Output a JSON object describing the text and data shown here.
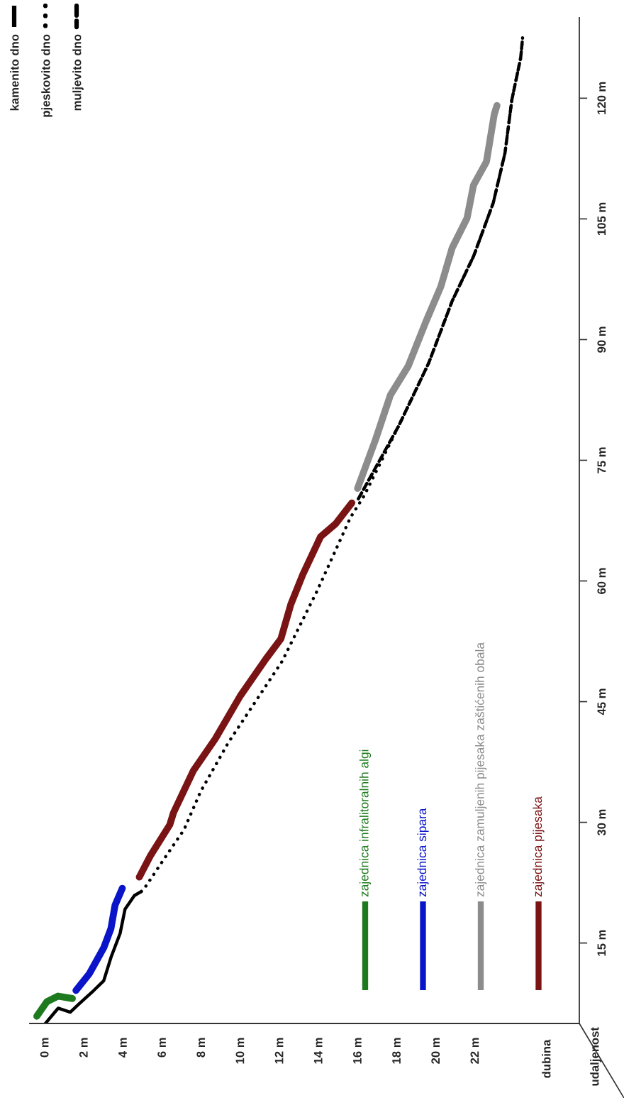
{
  "chart_data": {
    "type": "line",
    "annotations": [
      "dubina"
    ],
    "ylabel": "udaljenost",
    "legend": "top left",
    "xlim": [
      -0.8,
      27.3
    ],
    "ylim": [
      5,
      130
    ],
    "xticks": [
      {
        "value": 0,
        "label": "0 m"
      },
      {
        "value": 2,
        "label": "2 m"
      },
      {
        "value": 4,
        "label": "4 m"
      },
      {
        "value": 6,
        "label": "6 m"
      },
      {
        "value": 8,
        "label": "8 m"
      },
      {
        "value": 10,
        "label": "10 m"
      },
      {
        "value": 12,
        "label": "12 m"
      },
      {
        "value": 14,
        "label": "14 m"
      },
      {
        "value": 16,
        "label": "16 m"
      },
      {
        "value": 18,
        "label": "18 m"
      },
      {
        "value": 20,
        "label": "20 m"
      },
      {
        "value": 22,
        "label": "22 m"
      }
    ],
    "yticks": [
      {
        "value": 15,
        "label": "15 m"
      },
      {
        "value": 30,
        "label": "30 m"
      },
      {
        "value": 45,
        "label": "45 m"
      },
      {
        "value": 60,
        "label": "60 m"
      },
      {
        "value": 75,
        "label": "75 m"
      },
      {
        "value": 90,
        "label": "90 m"
      },
      {
        "value": 105,
        "label": "105 m"
      },
      {
        "value": 120,
        "label": "120 m"
      }
    ],
    "series": [
      {
        "name": "kamenito dno",
        "color": "#000000",
        "line_style": "solid",
        "x": [
          0,
          0.65,
          1.27,
          1.75,
          2.47,
          2.98,
          3.35,
          3.82,
          4.07,
          4.55,
          4.9
        ],
        "values": [
          5.0,
          6.9,
          6.4,
          7.5,
          9.1,
          10.3,
          13.2,
          16.2,
          19.2,
          20.9,
          21.4
        ]
      },
      {
        "name": "pjeskovito dno",
        "color": "#000000",
        "line_style": "dotted",
        "x": [
          4.9,
          5.09,
          6.11,
          7.09,
          7.93,
          9.35,
          12.1,
          13.9,
          15.6,
          16.3,
          18.07,
          19.6,
          20.8,
          21.9,
          22.9,
          23.5,
          23.85,
          24.3,
          24.4
        ],
        "values": [
          21.4,
          21.9,
          25.6,
          29.1,
          33.8,
          39.9,
          50.0,
          58.8,
          67.9,
          70.6,
          79.3,
          87.1,
          94.8,
          100.4,
          107.0,
          113.2,
          119.8,
          125.0,
          127.5
        ]
      },
      {
        "name": "muljevito dno",
        "color": "#000000",
        "line_style": "dashed",
        "x": [
          16.0,
          18.07,
          19.6,
          20.8,
          21.9,
          22.9,
          23.5,
          23.85,
          24.3,
          24.4
        ],
        "values": [
          70.2,
          79.3,
          87.1,
          94.8,
          100.4,
          107.0,
          113.2,
          119.8,
          125.0,
          127.5
        ]
      },
      {
        "name": "zajednica infralitoralnih algi",
        "color": "#1e7a1e",
        "x": [
          -0.44,
          0.07,
          0.65,
          1.38
        ],
        "values": [
          5.9,
          7.7,
          8.4,
          8.1
        ]
      },
      {
        "name": "zajednica sipara",
        "color": "#0a14c8",
        "x": [
          1.56,
          2.25,
          2.98,
          3.35,
          3.56,
          3.93
        ],
        "values": [
          9.1,
          11.2,
          14.4,
          16.8,
          19.7,
          21.8
        ]
      },
      {
        "name": "zajednica zamuljenih pijesaka zaštićenih obala",
        "color": "#8c8c8c",
        "x": [
          15.96,
          16.87,
          17.64,
          18.55,
          19.45,
          20.22,
          20.8,
          21.56,
          21.89,
          22.55,
          22.95,
          23.09
        ],
        "values": [
          71.5,
          77.5,
          83.1,
          86.7,
          92.2,
          96.6,
          101.4,
          105.1,
          109.2,
          112.1,
          118.0,
          119.1
        ]
      },
      {
        "name": "zajednica pijesaka",
        "color": "#7a1414",
        "x": [
          4.8,
          5.38,
          6.36,
          6.55,
          7.56,
          8.69,
          9.96,
          11.27,
          12.04,
          12.55,
          13.16,
          14.07,
          14.84,
          15.67
        ],
        "values": [
          23.2,
          25.9,
          29.7,
          31.2,
          36.4,
          40.4,
          45.7,
          50.3,
          52.8,
          57.1,
          60.8,
          65.5,
          67.1,
          69.7
        ]
      }
    ]
  }
}
